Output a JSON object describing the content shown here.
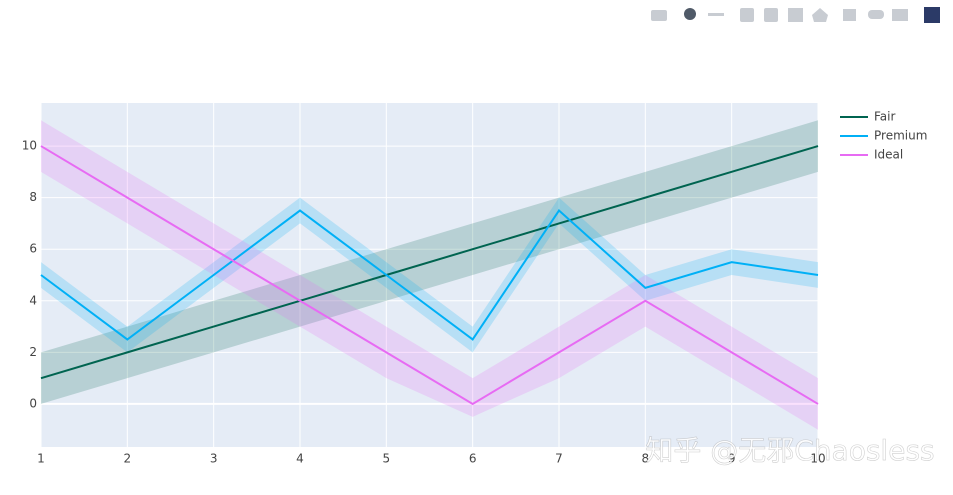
{
  "chart_data": {
    "type": "line-band",
    "x": [
      1,
      2,
      3,
      4,
      5,
      6,
      7,
      8,
      9,
      10
    ],
    "xlim": [
      1,
      10
    ],
    "xticks": [
      1,
      2,
      3,
      4,
      5,
      6,
      7,
      8,
      9,
      10
    ],
    "ylim": [
      -1.67,
      11.67
    ],
    "yticks": [
      0,
      2,
      4,
      6,
      8,
      10
    ],
    "grid": true,
    "legend": "right",
    "series": [
      {
        "name": "Fair",
        "color": "rgb(0,100,80)",
        "band_color": "rgba(0,100,80,0.2)",
        "values": [
          1,
          2,
          3,
          4,
          5,
          6,
          7,
          8,
          9,
          10
        ],
        "upper": [
          2,
          3,
          4,
          5,
          6,
          7,
          8,
          9,
          10,
          11
        ],
        "lower": [
          0,
          1,
          2,
          3,
          4,
          5,
          6,
          7,
          8,
          9
        ]
      },
      {
        "name": "Premium",
        "color": "rgb(0,176,246)",
        "band_color": "rgba(0,176,246,0.2)",
        "values": [
          5,
          2.5,
          5,
          7.5,
          5,
          2.5,
          7.5,
          4.5,
          5.5,
          5
        ],
        "upper": [
          5.5,
          3,
          5.5,
          8,
          5.5,
          3,
          8,
          5,
          6,
          5.5
        ],
        "lower": [
          4.5,
          2,
          4.5,
          7,
          4.5,
          2,
          7,
          4,
          5,
          4.5
        ]
      },
      {
        "name": "Ideal",
        "color": "rgb(231,107,243)",
        "band_color": "rgba(231,107,243,0.2)",
        "values": [
          10,
          8,
          6,
          4,
          2,
          0,
          2,
          4,
          2,
          0
        ],
        "upper": [
          11,
          9,
          7,
          5,
          3,
          1,
          3,
          5,
          3,
          1
        ],
        "lower": [
          9,
          7,
          5,
          3,
          1,
          -0.5,
          1,
          3,
          1,
          -1
        ]
      }
    ]
  },
  "watermark": "知乎 @无邪Chaosless"
}
